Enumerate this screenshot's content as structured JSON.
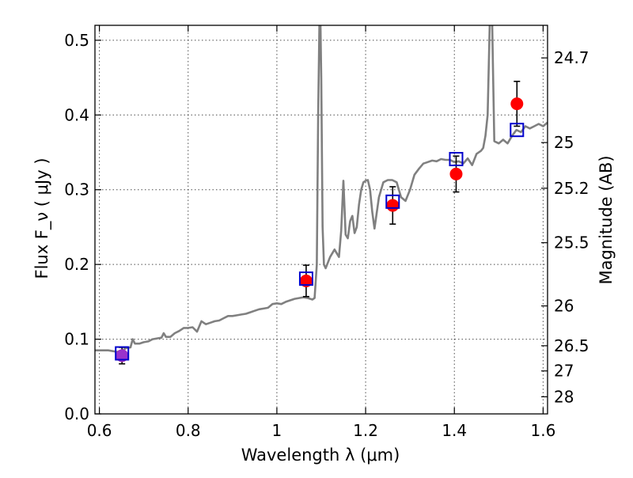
{
  "chart_data": {
    "type": "scatter",
    "xlabel": "Wavelength  λ (μm)",
    "ylabel": "Flux  F_ν  ( μJy )",
    "ylabel_right": "Magnitude (AB)",
    "xlim": [
      0.59,
      1.61
    ],
    "ylim": [
      0.0,
      0.52
    ],
    "grid": true,
    "x_ticks": [
      0.6,
      0.8,
      1.0,
      1.2,
      1.4,
      1.6
    ],
    "x_tick_labels": [
      "0.6",
      "0.8",
      "1",
      "1.2",
      "1.4",
      "1.6"
    ],
    "y_ticks": [
      0.0,
      0.1,
      0.2,
      0.3,
      0.4,
      0.5
    ],
    "y_tick_labels": [
      "0.0",
      "0.1",
      "0.2",
      "0.3",
      "0.4",
      "0.5"
    ],
    "right_ticks": [
      {
        "label": "24.7",
        "flux": 0.4764
      },
      {
        "label": "25",
        "flux": 0.3631
      },
      {
        "label": "25.2",
        "flux": 0.302
      },
      {
        "label": "25.5",
        "flux": 0.2291
      },
      {
        "label": "26",
        "flux": 0.1445
      },
      {
        "label": "26.5",
        "flux": 0.0912
      },
      {
        "label": "27",
        "flux": 0.0575
      },
      {
        "label": "28",
        "flux": 0.0229
      }
    ],
    "model_spectrum": {
      "color": "#808080",
      "x": [
        0.59,
        0.62,
        0.64,
        0.65,
        0.66,
        0.67,
        0.675,
        0.68,
        0.69,
        0.7,
        0.71,
        0.72,
        0.73,
        0.74,
        0.745,
        0.75,
        0.76,
        0.77,
        0.78,
        0.79,
        0.8,
        0.81,
        0.82,
        0.83,
        0.84,
        0.85,
        0.86,
        0.87,
        0.88,
        0.89,
        0.9,
        0.91,
        0.92,
        0.93,
        0.94,
        0.95,
        0.96,
        0.97,
        0.98,
        0.99,
        1.0,
        1.01,
        1.02,
        1.03,
        1.04,
        1.05,
        1.06,
        1.07,
        1.08,
        1.085,
        1.09,
        1.093,
        1.096,
        1.098,
        1.1,
        1.103,
        1.106,
        1.11,
        1.12,
        1.13,
        1.14,
        1.145,
        1.15,
        1.155,
        1.16,
        1.165,
        1.17,
        1.175,
        1.18,
        1.185,
        1.19,
        1.195,
        1.2,
        1.205,
        1.21,
        1.215,
        1.22,
        1.23,
        1.24,
        1.25,
        1.26,
        1.27,
        1.28,
        1.29,
        1.3,
        1.31,
        1.32,
        1.33,
        1.34,
        1.35,
        1.36,
        1.37,
        1.38,
        1.39,
        1.4,
        1.41,
        1.42,
        1.43,
        1.44,
        1.45,
        1.46,
        1.465,
        1.47,
        1.475,
        1.48,
        1.485,
        1.49,
        1.5,
        1.51,
        1.52,
        1.53,
        1.54,
        1.55,
        1.56,
        1.57,
        1.58,
        1.59,
        1.6,
        1.61
      ],
      "y": [
        0.085,
        0.085,
        0.083,
        0.084,
        0.088,
        0.089,
        0.1,
        0.094,
        0.094,
        0.096,
        0.097,
        0.1,
        0.101,
        0.102,
        0.108,
        0.103,
        0.103,
        0.108,
        0.111,
        0.115,
        0.115,
        0.116,
        0.11,
        0.124,
        0.12,
        0.122,
        0.124,
        0.125,
        0.128,
        0.131,
        0.131,
        0.132,
        0.133,
        0.134,
        0.136,
        0.138,
        0.14,
        0.141,
        0.142,
        0.147,
        0.148,
        0.147,
        0.15,
        0.152,
        0.154,
        0.155,
        0.156,
        0.155,
        0.153,
        0.155,
        0.2,
        0.4,
        0.53,
        0.53,
        0.45,
        0.25,
        0.2,
        0.195,
        0.21,
        0.22,
        0.21,
        0.245,
        0.312,
        0.24,
        0.235,
        0.258,
        0.265,
        0.242,
        0.25,
        0.28,
        0.3,
        0.31,
        0.312,
        0.313,
        0.3,
        0.27,
        0.248,
        0.29,
        0.31,
        0.313,
        0.313,
        0.31,
        0.29,
        0.285,
        0.3,
        0.32,
        0.328,
        0.335,
        0.337,
        0.339,
        0.338,
        0.341,
        0.34,
        0.34,
        0.337,
        0.338,
        0.335,
        0.342,
        0.333,
        0.348,
        0.352,
        0.356,
        0.372,
        0.4,
        0.53,
        0.53,
        0.365,
        0.362,
        0.367,
        0.362,
        0.372,
        0.38,
        0.377,
        0.385,
        0.382,
        0.385,
        0.388,
        0.385,
        0.39
      ]
    },
    "model_points": {
      "marker": "open-square",
      "color": "#0000cc",
      "x": [
        0.651,
        1.066,
        1.261,
        1.404,
        1.541
      ],
      "y": [
        0.081,
        0.181,
        0.284,
        0.341,
        0.38
      ]
    },
    "observed_points": {
      "marker": "filled-circle",
      "color": "#ff0000",
      "errorbar_color": "#000000",
      "x": [
        0.651,
        1.066,
        1.261,
        1.404,
        1.541
      ],
      "y": [
        0.078,
        0.178,
        0.279,
        0.321,
        0.415
      ],
      "yerr": [
        0.011,
        0.021,
        0.025,
        0.024,
        0.03
      ]
    },
    "highlight_point": {
      "color": "#9933cc",
      "x": 0.651,
      "y": 0.078
    }
  }
}
